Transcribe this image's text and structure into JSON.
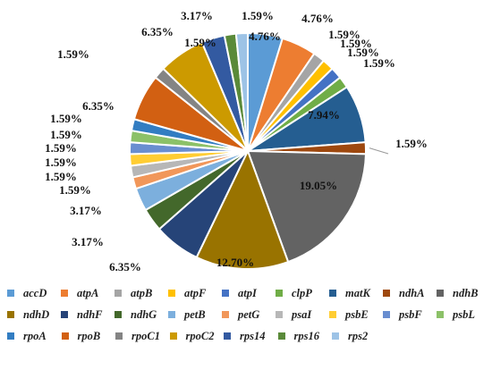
{
  "chart_data": {
    "type": "pie",
    "title": "",
    "legend_position": "bottom",
    "slices": [
      {
        "name": "accD",
        "value": 4.76,
        "label": "4.76%",
        "color": "#5B9BD5"
      },
      {
        "name": "atpA",
        "value": 4.76,
        "label": "4.76%",
        "color": "#ED7D31"
      },
      {
        "name": "atpB",
        "value": 1.59,
        "label": "1.59%",
        "color": "#A5A5A5"
      },
      {
        "name": "atpF",
        "value": 1.59,
        "label": "1.59%",
        "color": "#FFC000"
      },
      {
        "name": "atpI",
        "value": 1.59,
        "label": "1.59%",
        "color": "#4472C4"
      },
      {
        "name": "clpP",
        "value": 1.59,
        "label": "1.59%",
        "color": "#70AD47"
      },
      {
        "name": "matK",
        "value": 7.94,
        "label": "7.94%",
        "color": "#255E91"
      },
      {
        "name": "ndhA",
        "value": 1.59,
        "label": "1.59%",
        "color": "#9E480E"
      },
      {
        "name": "ndhB",
        "value": 19.05,
        "label": "19.05%",
        "color": "#636363"
      },
      {
        "name": "ndhD",
        "value": 12.7,
        "label": "12.70%",
        "color": "#997300"
      },
      {
        "name": "ndhF",
        "value": 6.35,
        "label": "6.35%",
        "color": "#264478"
      },
      {
        "name": "ndhG",
        "value": 3.17,
        "label": "3.17%",
        "color": "#43682B"
      },
      {
        "name": "petB",
        "value": 3.17,
        "label": "3.17%",
        "color": "#7CAFDD"
      },
      {
        "name": "petG",
        "value": 1.59,
        "label": "1.59%",
        "color": "#F1975A"
      },
      {
        "name": "psaI",
        "value": 1.59,
        "label": "1.59%",
        "color": "#B7B7B7"
      },
      {
        "name": "psbE",
        "value": 1.59,
        "label": "1.59%",
        "color": "#FFCD33"
      },
      {
        "name": "psbF",
        "value": 1.59,
        "label": "1.59%",
        "color": "#698ED0"
      },
      {
        "name": "psbL",
        "value": 1.59,
        "label": "1.59%",
        "color": "#8CC168"
      },
      {
        "name": "rpoA",
        "value": 1.59,
        "label": "1.59%",
        "color": "#327DC2"
      },
      {
        "name": "rpoB",
        "value": 6.35,
        "label": "6.35%",
        "color": "#D26012"
      },
      {
        "name": "rpoC1",
        "value": 1.59,
        "label": "1.59%",
        "color": "#848484"
      },
      {
        "name": "rpoC2",
        "value": 6.35,
        "label": "6.35%",
        "color": "#CC9A00"
      },
      {
        "name": "rps14",
        "value": 3.17,
        "label": "3.17%",
        "color": "#335AA1"
      },
      {
        "name": "rps16",
        "value": 1.59,
        "label": "1.59%",
        "color": "#5A8A39"
      },
      {
        "name": "rps2",
        "value": 1.59,
        "label": "1.59%",
        "color": "#9DC3E6"
      }
    ]
  }
}
